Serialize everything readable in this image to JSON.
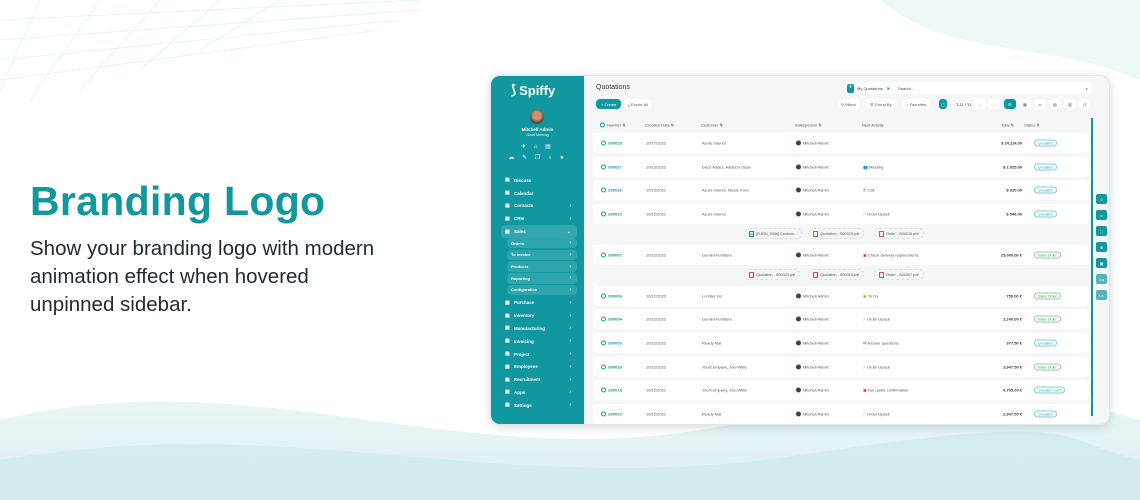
{
  "hero": {
    "title": "Branding Logo",
    "text": "Show your branding logo with modern animation effect when hovered unpinned sidebar."
  },
  "colors": {
    "accent": "#10979f",
    "text": "#1f2a33"
  },
  "sidebar": {
    "logo": "Spiffy",
    "user": "Mitchell Admin",
    "greeting": "Good Morning",
    "items": [
      {
        "label": "Discuss",
        "icon": "chat-icon"
      },
      {
        "label": "Calendar",
        "icon": "calendar-icon"
      },
      {
        "label": "Contacts",
        "icon": "contacts-icon",
        "chevron": true
      },
      {
        "label": "CRM",
        "icon": "crm-icon",
        "chevron": true
      },
      {
        "label": "Sales",
        "icon": "sales-icon",
        "open": true
      }
    ],
    "sub": [
      "Orders",
      "To Invoice",
      "Products",
      "Reporting",
      "Configuration"
    ],
    "items2": [
      {
        "label": "Purchase",
        "icon": "purchase-icon"
      },
      {
        "label": "Inventory",
        "icon": "inventory-icon"
      },
      {
        "label": "Manufacturing",
        "icon": "wrench-icon"
      },
      {
        "label": "Invoicing",
        "icon": "invoice-icon"
      },
      {
        "label": "Project",
        "icon": "project-icon"
      },
      {
        "label": "Employees",
        "icon": "employees-icon"
      },
      {
        "label": "Recruitment",
        "icon": "recruitment-icon"
      },
      {
        "label": "Apps",
        "icon": "apps-icon"
      },
      {
        "label": "Settings",
        "icon": "gear-icon"
      }
    ]
  },
  "main": {
    "title": "Quotations",
    "facet": "My Quotations",
    "search_placeholder": "Search...",
    "create": "+ Create",
    "export": "Export All",
    "filters": "Filters",
    "group_by": "Group By",
    "favorites": "Favorites",
    "pager": "1-11 / 11",
    "columns": [
      "Number",
      "Creation Date",
      "Customer",
      "Salesperson",
      "Next Activity",
      "Total",
      "Status"
    ],
    "rows": [
      {
        "number": "S00028",
        "date": "10/17/2022",
        "customer": "Azure Interior",
        "sales": "Mitchell Admin",
        "activity": "",
        "total": "$ 24,114.00",
        "status": "Quotation"
      },
      {
        "number": "S00027",
        "date": "10/13/2022",
        "customer": "Deco Addict, Addison Olson",
        "sales": "Mitchell Admin",
        "activity": "Meeting",
        "total": "$ 2,025.00",
        "status": "Quotation"
      },
      {
        "number": "S00026",
        "date": "10/13/2022",
        "customer": "Azure Interior, Nicole Ford",
        "sales": "Mitchell Admin",
        "activity": "Call",
        "total": "$ 320.00",
        "status": "Quotation"
      },
      {
        "number": "S00023",
        "date": "10/12/2022",
        "customer": "Azure Interior",
        "sales": "Mitchell Admin",
        "activity": "Order Upsell",
        "total": "$ 546.00",
        "status": "Quotation"
      },
      {
        "number": "S00007",
        "date": "10/12/2022",
        "customer": "Gemini Furniture",
        "sales": "Mitchell Admin",
        "activity": "Check delivery requirements",
        "total": "15,060.00 €",
        "status": "Sales Order"
      },
      {
        "number": "S00006",
        "date": "10/12/2022",
        "customer": "Lumber Inc",
        "sales": "Mitchell Admin",
        "activity": "To Do",
        "total": "750.00 €",
        "status": "Sales Order"
      },
      {
        "number": "S00004",
        "date": "10/12/2022",
        "customer": "Gemini Furniture",
        "sales": "Mitchell Admin",
        "activity": "Order Upsell",
        "total": "2,240.00 €",
        "status": "Sales Order"
      },
      {
        "number": "S00003",
        "date": "10/12/2022",
        "customer": "Ready Mat",
        "sales": "Mitchell Admin",
        "activity": "Answer questions",
        "total": "377.50 €",
        "status": "Quotation"
      },
      {
        "number": "S00019",
        "date": "10/12/2022",
        "customer": "YourCompany, Joel Willis",
        "sales": "Mitchell Admin",
        "activity": "Order Upsell",
        "total": "2,947.50 €",
        "status": "Sales Order"
      },
      {
        "number": "S00018",
        "date": "10/12/2022",
        "customer": "YourCompany, Joel Willis",
        "sales": "Mitchell Admin",
        "activity": "Get quote confirmation",
        "total": "9,705.00 €",
        "status": "Quotation Sent"
      },
      {
        "number": "S00002",
        "date": "10/12/2022",
        "customer": "Ready Mat",
        "sales": "Mitchell Admin",
        "activity": "Order Upsell",
        "total": "2,947.50 €",
        "status": "Quotation"
      }
    ],
    "attachments1": [
      "[FURN_0096] Customi...",
      "Quotation - S00023.pdf",
      "Order - S00015.pdf"
    ],
    "attachments2": [
      "Quotation - S00023.pdf",
      "Quotation - S00010.pdf",
      "Order - S00007.pdf"
    ]
  }
}
